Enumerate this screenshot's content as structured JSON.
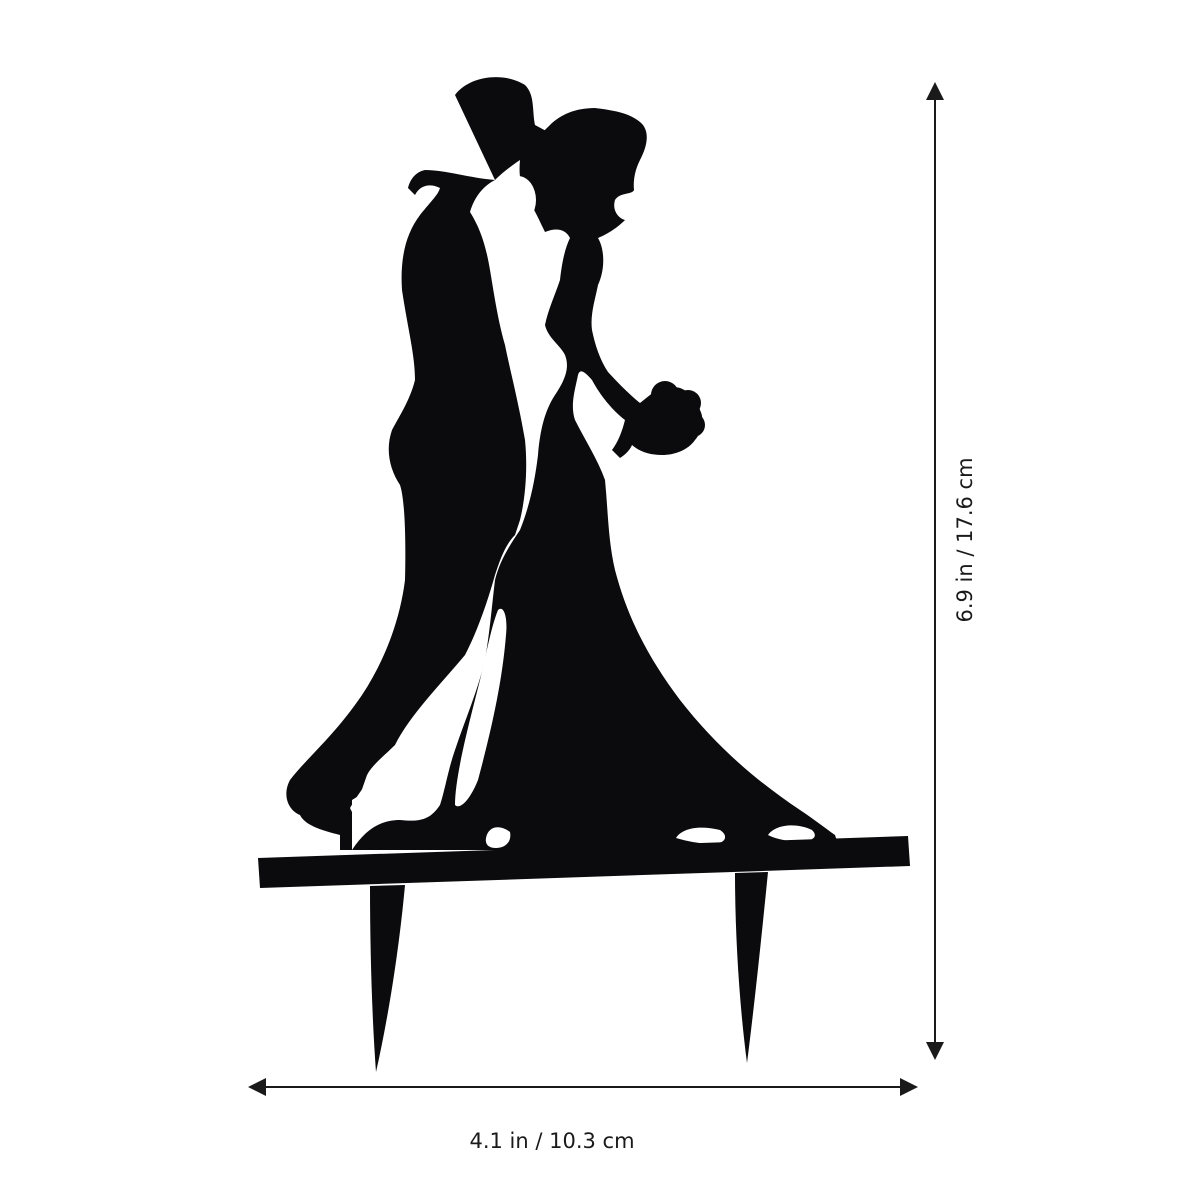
{
  "image": {
    "subject": "wedding cake topper silhouette",
    "colors": {
      "background": "#ffffff",
      "silhouette": "#0b0b0d",
      "dimension_lines": "#1a1a1a"
    }
  },
  "dimensions": {
    "width_label": "4.1 in / 10.3 cm",
    "height_label": "6.9 in / 17.6 cm"
  }
}
